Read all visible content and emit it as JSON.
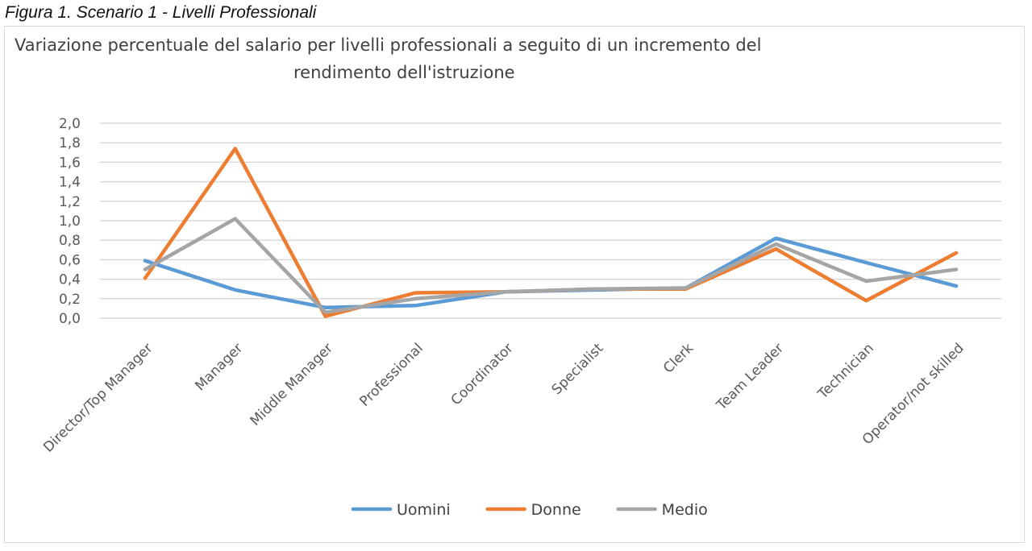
{
  "figure_caption": "Figura 1. Scenario 1 - Livelli Professionali",
  "chart_data": {
    "type": "line",
    "title_line1": "Variazione percentuale del salario per livelli professionali a seguito di un incremento del",
    "title_line2": "rendimento dell'istruzione",
    "categories": [
      "Director/Top Manager",
      "Manager",
      "Middle Manager",
      "Professional",
      "Coordinator",
      "Specialist",
      "Clerk",
      "Team Leader",
      "Technician",
      "Operator/not skilled"
    ],
    "y_ticks": [
      "0,0",
      "0,2",
      "0,4",
      "0,6",
      "0,8",
      "1,0",
      "1,2",
      "1,4",
      "1,6",
      "1,8",
      "2,0"
    ],
    "ylim": [
      0,
      2.0
    ],
    "y_step": 0.2,
    "grid": true,
    "legend_position": "bottom",
    "series": [
      {
        "name": "Uomini",
        "color": "#5b9bd5",
        "values": [
          0.59,
          0.29,
          0.11,
          0.13,
          0.27,
          0.29,
          0.31,
          0.82,
          0.57,
          0.33
        ]
      },
      {
        "name": "Donne",
        "color": "#ed7d31",
        "values": [
          0.41,
          1.74,
          0.02,
          0.26,
          0.27,
          0.3,
          0.3,
          0.71,
          0.18,
          0.67
        ]
      },
      {
        "name": "Medio",
        "color": "#a5a5a5",
        "values": [
          0.5,
          1.02,
          0.06,
          0.2,
          0.27,
          0.3,
          0.31,
          0.76,
          0.38,
          0.5
        ]
      }
    ]
  }
}
